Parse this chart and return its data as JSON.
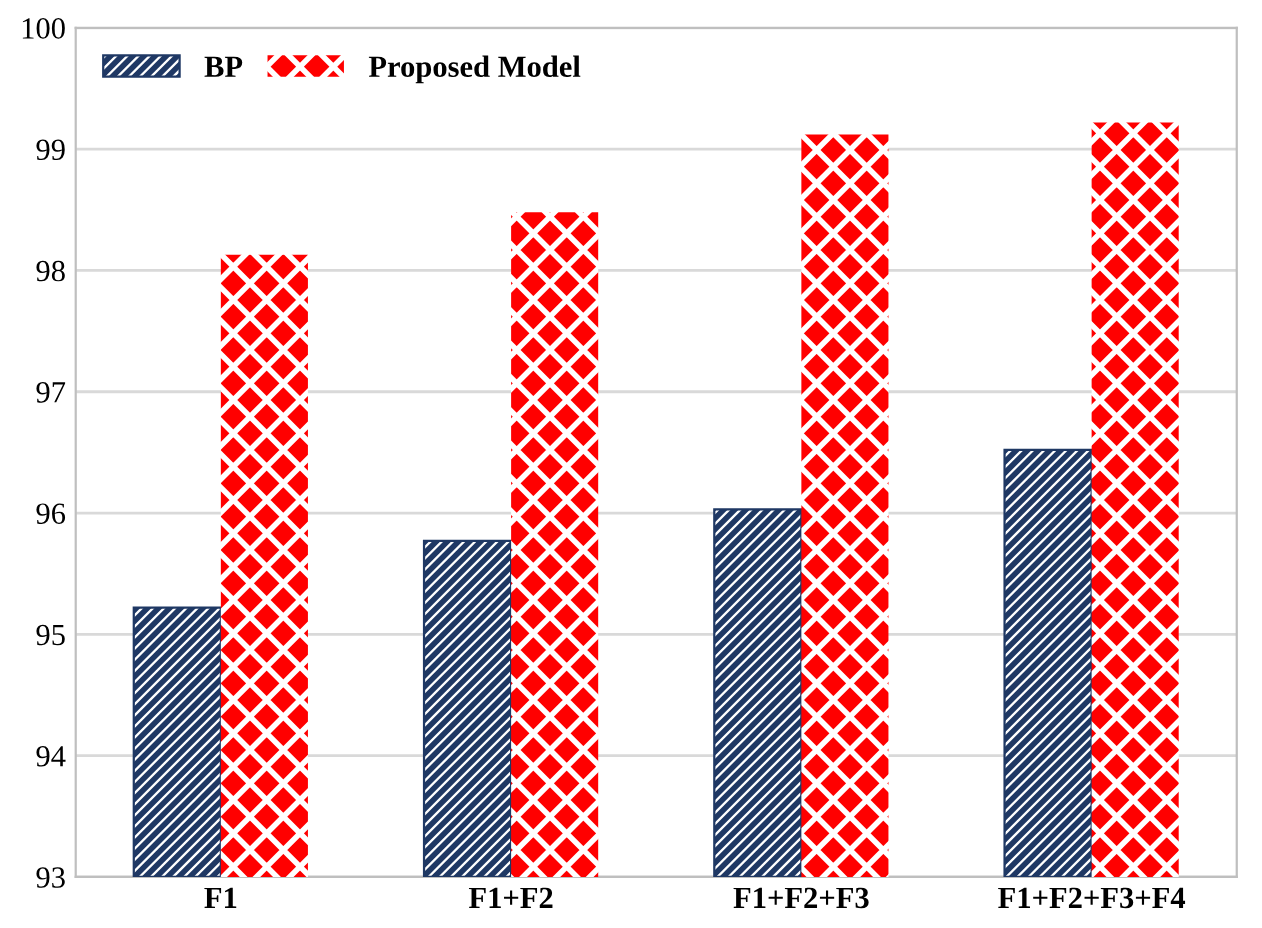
{
  "chart_data": {
    "type": "bar",
    "categories": [
      "F1",
      "F1+F2",
      "F1+F2+F3",
      "F1+F2+F3+F4"
    ],
    "series": [
      {
        "name": "BP",
        "color": "#1f3864",
        "values": [
          95.22,
          95.77,
          96.03,
          96.52
        ]
      },
      {
        "name": "Proposed Model",
        "color": "#ff0000",
        "values": [
          98.13,
          98.48,
          99.12,
          99.22
        ]
      }
    ],
    "ylim": [
      93,
      100
    ],
    "yticks": [
      93,
      94,
      95,
      96,
      97,
      98,
      99,
      100
    ],
    "grid": "y",
    "legend": "top left"
  }
}
